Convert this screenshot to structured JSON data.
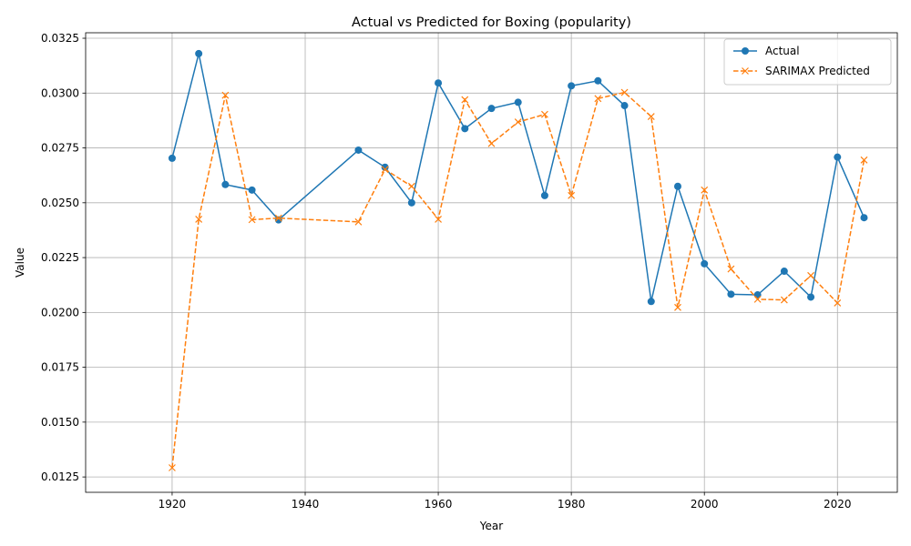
{
  "chart_data": {
    "type": "line",
    "title": "Actual vs Predicted for Boxing (popularity)",
    "xlabel": "Year",
    "ylabel": "Value",
    "xlim": [
      1907,
      2029
    ],
    "ylim": [
      0.0118,
      0.03275
    ],
    "x_ticks": [
      1920,
      1940,
      1960,
      1980,
      2000,
      2020
    ],
    "y_ticks": [
      0.0125,
      0.015,
      0.0175,
      0.02,
      0.0225,
      0.025,
      0.0275,
      0.03,
      0.0325
    ],
    "x_tick_labels": [
      "1920",
      "1940",
      "1960",
      "1980",
      "2000",
      "2020"
    ],
    "y_tick_labels": [
      "0.0125",
      "0.0150",
      "0.0175",
      "0.0200",
      "0.0225",
      "0.0250",
      "0.0275",
      "0.0300",
      "0.0325"
    ],
    "grid": true,
    "legend_position": "top-right",
    "series": [
      {
        "name": "Actual",
        "color": "#1f77b4",
        "line_style": "solid",
        "marker": "circle",
        "points": [
          [
            1920,
            0.02703
          ],
          [
            1924,
            0.0318
          ],
          [
            1928,
            0.02583
          ],
          [
            1932,
            0.02558
          ],
          [
            1936,
            0.02422
          ],
          [
            1948,
            0.0274
          ],
          [
            1952,
            0.02662
          ],
          [
            1956,
            0.025
          ],
          [
            1960,
            0.03046
          ],
          [
            1964,
            0.02838
          ],
          [
            1968,
            0.0293
          ],
          [
            1972,
            0.02958
          ],
          [
            1976,
            0.02533
          ],
          [
            1980,
            0.03033
          ],
          [
            1984,
            0.03056
          ],
          [
            1988,
            0.02943
          ],
          [
            1992,
            0.0205
          ],
          [
            1996,
            0.02575
          ],
          [
            2000,
            0.02222
          ],
          [
            2004,
            0.02083
          ],
          [
            2008,
            0.0208
          ],
          [
            2012,
            0.02188
          ],
          [
            2016,
            0.0207
          ],
          [
            2020,
            0.02708
          ],
          [
            2024,
            0.02432
          ]
        ]
      },
      {
        "name": "SARIMAX Predicted",
        "color": "#ff7f0e",
        "line_style": "dashed",
        "marker": "x",
        "points": [
          [
            1920,
            0.01292
          ],
          [
            1924,
            0.02425
          ],
          [
            1928,
            0.0299
          ],
          [
            1932,
            0.02423
          ],
          [
            1936,
            0.0243
          ],
          [
            1948,
            0.02413
          ],
          [
            1952,
            0.02652
          ],
          [
            1956,
            0.02575
          ],
          [
            1960,
            0.02425
          ],
          [
            1964,
            0.0297
          ],
          [
            1968,
            0.0277
          ],
          [
            1972,
            0.02868
          ],
          [
            1976,
            0.02903
          ],
          [
            1980,
            0.02533
          ],
          [
            1984,
            0.02975
          ],
          [
            1988,
            0.03003
          ],
          [
            1992,
            0.02893
          ],
          [
            1996,
            0.02023
          ],
          [
            2000,
            0.02558
          ],
          [
            2004,
            0.02198
          ],
          [
            2008,
            0.0206
          ],
          [
            2012,
            0.02057
          ],
          [
            2016,
            0.02168
          ],
          [
            2020,
            0.02043
          ],
          [
            2024,
            0.02695
          ]
        ]
      }
    ]
  }
}
